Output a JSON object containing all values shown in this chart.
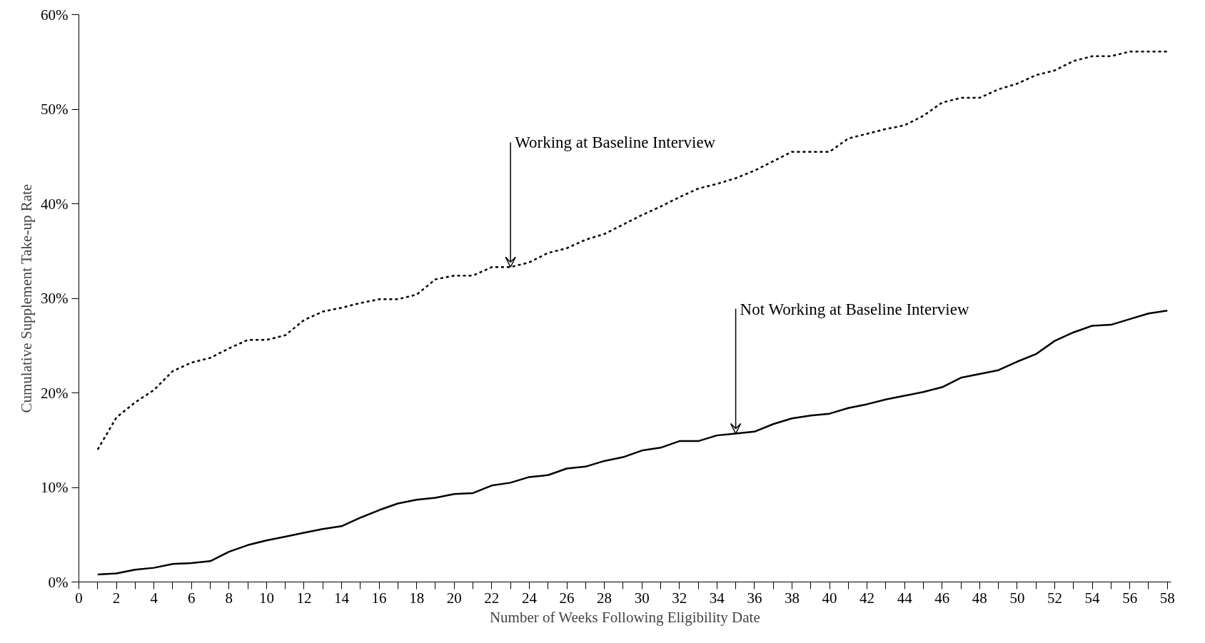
{
  "chart_data": {
    "type": "line",
    "xlabel": "Number of Weeks Following Eligibility Date",
    "ylabel": "Cumulative Supplement Take-up Rate",
    "x": [
      1,
      2,
      3,
      4,
      5,
      6,
      7,
      8,
      9,
      10,
      11,
      12,
      13,
      14,
      15,
      16,
      17,
      18,
      19,
      20,
      21,
      22,
      23,
      24,
      25,
      26,
      27,
      28,
      29,
      30,
      31,
      32,
      33,
      34,
      35,
      36,
      37,
      38,
      39,
      40,
      41,
      42,
      43,
      44,
      45,
      46,
      47,
      48,
      49,
      50,
      51,
      52,
      53,
      54,
      55,
      56,
      57,
      58
    ],
    "series": [
      {
        "color": "#000000",
        "line_style": "dashed",
        "values": [
          14.0,
          17.4,
          19.0,
          20.3,
          22.3,
          23.2,
          23.7,
          24.7,
          25.6,
          25.6,
          26.1,
          27.7,
          28.6,
          29.0,
          29.5,
          29.9,
          29.9,
          30.4,
          32.0,
          32.4,
          32.4,
          33.3,
          33.3,
          33.8,
          34.8,
          35.3,
          36.2,
          36.8,
          37.8,
          38.8,
          39.7,
          40.7,
          41.6,
          42.1,
          42.7,
          43.5,
          44.5,
          45.5,
          45.5,
          45.5,
          46.9,
          47.4,
          47.9,
          48.3,
          49.3,
          50.7,
          51.2,
          51.2,
          52.1,
          52.7,
          53.6,
          54.1,
          55.1,
          55.6,
          55.6,
          56.1,
          56.1,
          56.1
        ]
      },
      {
        "color": "#000000",
        "line_style": "solid",
        "values": [
          0.8,
          0.9,
          1.3,
          1.5,
          1.9,
          2.0,
          2.2,
          3.2,
          3.9,
          4.4,
          4.8,
          5.2,
          5.6,
          5.9,
          6.8,
          7.6,
          8.3,
          8.7,
          8.9,
          9.3,
          9.4,
          10.2,
          10.5,
          11.1,
          11.3,
          12.0,
          12.2,
          12.8,
          13.2,
          13.9,
          14.2,
          14.9,
          14.9,
          15.5,
          15.7,
          15.9,
          16.7,
          17.3,
          17.6,
          17.8,
          18.4,
          18.8,
          19.3,
          19.7,
          20.1,
          20.6,
          21.6,
          22.0,
          22.4,
          23.3,
          24.1,
          25.5,
          26.4,
          27.1,
          27.2,
          27.8,
          28.4,
          28.7
        ]
      }
    ],
    "annotations": [
      {
        "text": "Working at Baseline Interview",
        "x": 23,
        "y": 33.3
      },
      {
        "text": "Not Working at Baseline Interview",
        "x": 35,
        "y": 15.7
      }
    ],
    "xlim": [
      0,
      58.2
    ],
    "xticks": [
      0,
      {
        "value": 1,
        "label": null
      },
      2,
      {
        "value": 3,
        "label": null
      },
      4,
      {
        "value": 5,
        "label": null
      },
      6,
      {
        "value": 7,
        "label": null
      },
      8,
      {
        "value": 9,
        "label": null
      },
      10,
      {
        "value": 11,
        "label": null
      },
      12,
      {
        "value": 13,
        "label": null
      },
      14,
      {
        "value": 15,
        "label": null
      },
      16,
      {
        "value": 17,
        "label": null
      },
      18,
      {
        "value": 19,
        "label": null
      },
      20,
      {
        "value": 21,
        "label": null
      },
      22,
      {
        "value": 23,
        "label": null
      },
      24,
      {
        "value": 25,
        "label": null
      },
      26,
      {
        "value": 27,
        "label": null
      },
      28,
      {
        "value": 29,
        "label": null
      },
      30,
      {
        "value": 31,
        "label": null
      },
      32,
      {
        "value": 33,
        "label": null
      },
      34,
      {
        "value": 35,
        "label": null
      },
      36,
      {
        "value": 37,
        "label": null
      },
      38,
      {
        "value": 39,
        "label": null
      },
      40,
      {
        "value": 41,
        "label": null
      },
      42,
      {
        "value": 43,
        "label": null
      },
      44,
      {
        "value": 45,
        "label": null
      },
      46,
      {
        "value": 47,
        "label": null
      },
      48,
      {
        "value": 49,
        "label": null
      },
      50,
      {
        "value": 51,
        "label": null
      },
      52,
      {
        "value": 53,
        "label": null
      },
      54,
      {
        "value": 55,
        "label": null
      },
      56,
      {
        "value": 57,
        "label": null
      },
      58
    ],
    "ylim": [
      0,
      60
    ],
    "yticks": [
      {
        "value": 0,
        "label": "0%"
      },
      {
        "value": 10,
        "label": "10%"
      },
      {
        "value": 20,
        "label": "20%"
      },
      {
        "value": 30,
        "label": "30%"
      },
      {
        "value": 40,
        "label": "40%"
      },
      {
        "value": 50,
        "label": "50%"
      },
      {
        "value": 60,
        "label": "60%"
      }
    ]
  }
}
